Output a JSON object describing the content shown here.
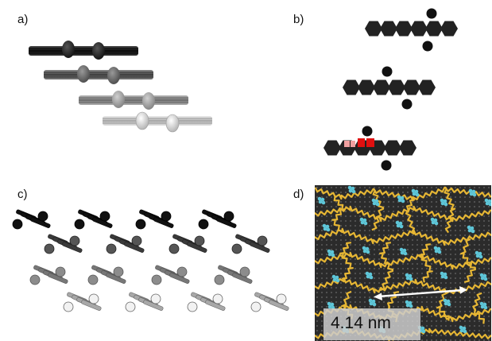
{
  "panels": {
    "a": {
      "label": "a)"
    },
    "b": {
      "label": "b)"
    },
    "c": {
      "label": "c)"
    },
    "d": {
      "label": "d)",
      "scale_text": "4.14 nm"
    }
  },
  "colors": {
    "layer1": "#1a1a1a",
    "layer2": "#5a5a5a",
    "layer3": "#8c8c8c",
    "layer4": "#c8c8c8",
    "stm_background": "#2b2b2b",
    "stm_yellow": "#e6b634",
    "stm_cyan": "#5ec6d8",
    "highlight_red": "#e01010",
    "highlight_pink": "#f0a0a0"
  }
}
